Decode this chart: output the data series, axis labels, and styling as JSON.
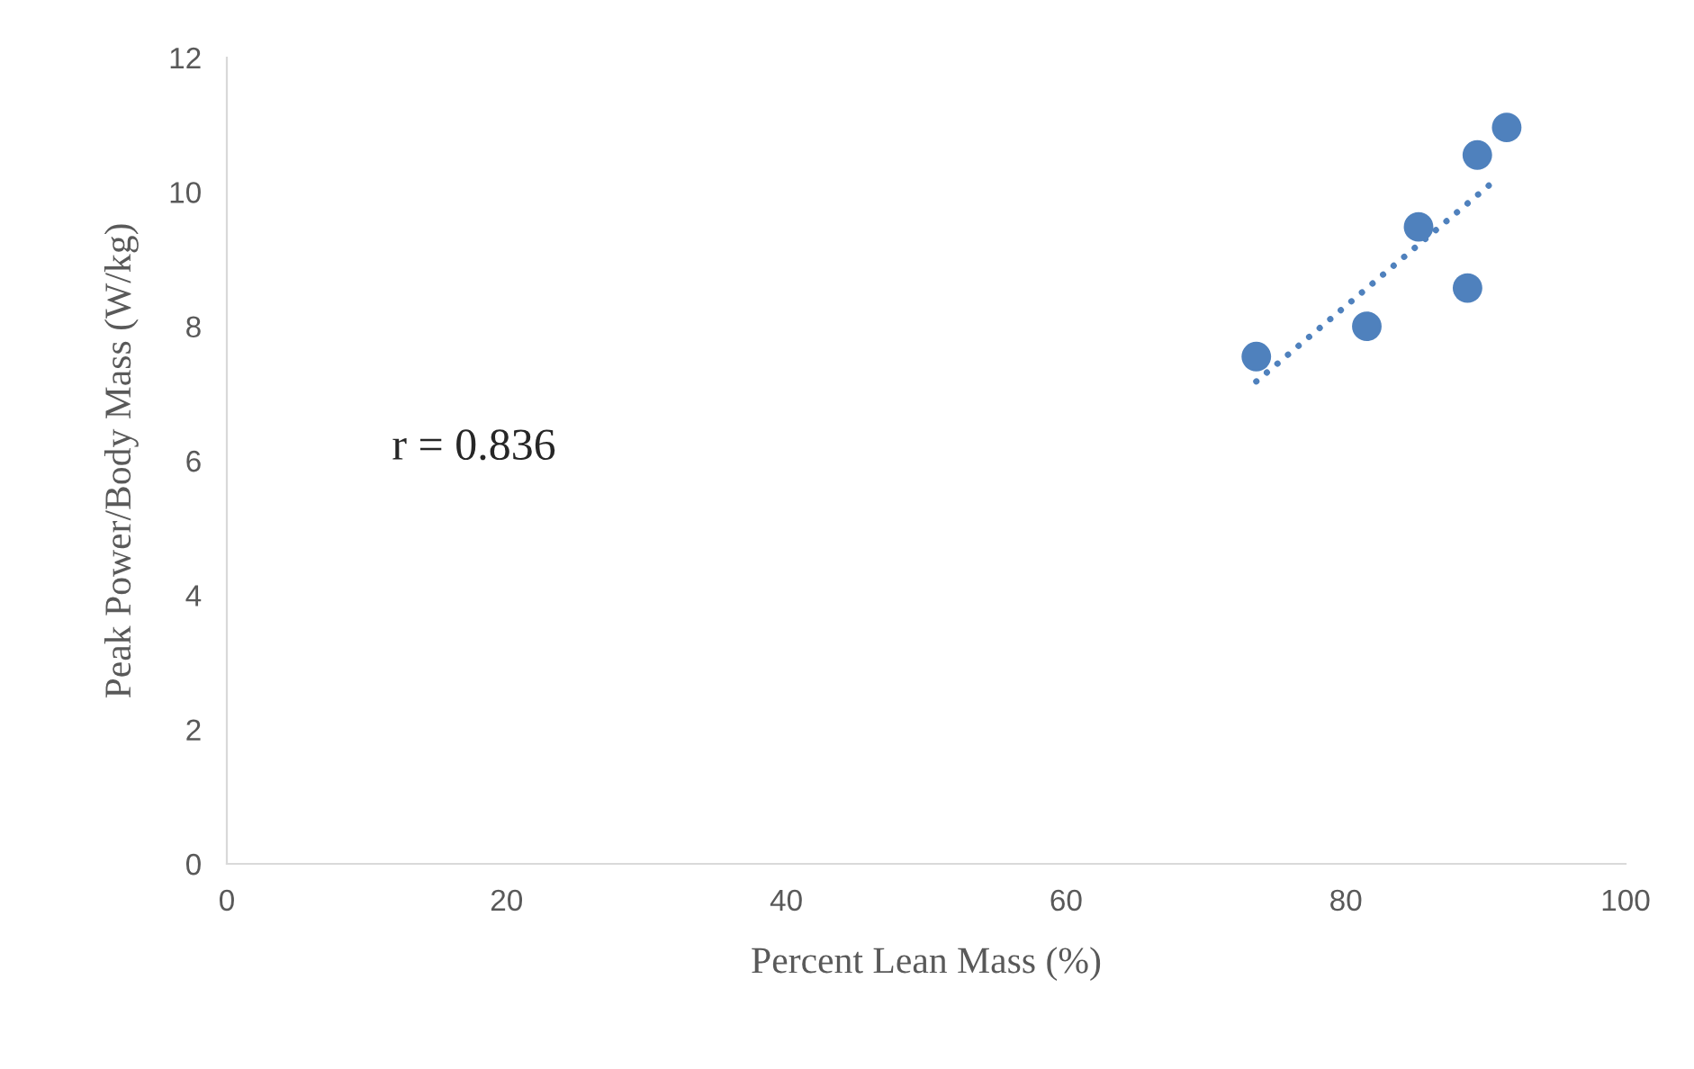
{
  "chart_data": {
    "type": "scatter",
    "xlabel": "Percent Lean Mass (%)",
    "ylabel": "Peak Power/Body Mass (W/kg)",
    "annotations": [
      "r = 0.836"
    ],
    "series": [
      {
        "color": "#4f81bd",
        "x": [
          73.6,
          81.5,
          85.2,
          88.7,
          89.4,
          91.5
        ],
        "values": [
          7.55,
          8.0,
          9.48,
          8.57,
          10.55,
          10.96
        ],
        "marker": "circle"
      },
      {
        "type": "line",
        "color": "#4f81bd",
        "x": [
          73.6,
          90.7
        ],
        "values": [
          7.18,
          10.18
        ],
        "line_style": "dotted"
      }
    ],
    "xlim": [
      0,
      100
    ],
    "xticks": [
      0,
      20,
      40,
      60,
      80,
      100
    ],
    "ylim": [
      0,
      12
    ],
    "yticks": [
      0,
      2,
      4,
      6,
      8,
      10,
      12
    ],
    "grid": false,
    "legend": false
  }
}
